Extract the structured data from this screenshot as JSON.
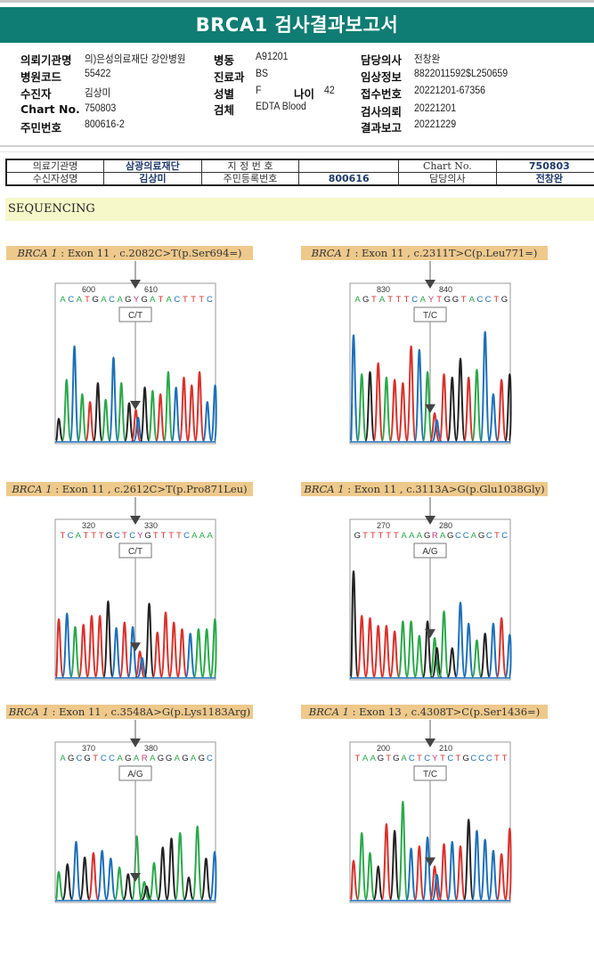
{
  "title": "BRCA1 검사결과보고서",
  "info": {
    "col1": [
      {
        "label": "의뢰기관명",
        "value": "의)은성의료재단 강안병원"
      },
      {
        "label": "병원코드",
        "value": "55422"
      },
      {
        "label": "수진자",
        "value": "김상미"
      },
      {
        "label": "Chart No.",
        "value": "750803"
      },
      {
        "label": "주민번호",
        "value": "800616-2"
      }
    ],
    "col2": [
      {
        "label": "병동",
        "value": "A91201"
      },
      {
        "label": "진료과",
        "value": "BS"
      },
      {
        "label": "성별",
        "value": "F"
      },
      {
        "label": "검체",
        "value": "EDTA Blood"
      }
    ],
    "age": {
      "label": "나이",
      "value": "42"
    },
    "col3": [
      {
        "label": "담당의사",
        "value": "전창완"
      },
      {
        "label": "임상정보",
        "value": "8822011592$L250659"
      },
      {
        "label": "접수번호",
        "value": "20221201-67356"
      },
      {
        "label": "검사의뢰",
        "value": "20221201"
      },
      {
        "label": "결과보고",
        "value": "20221229"
      }
    ]
  },
  "ref_table": {
    "rows": [
      [
        "의료기관명",
        "삼광의료재단",
        "지 정 번 호",
        "",
        "Chart No.",
        "750803"
      ],
      [
        "수신자성명",
        "김상미",
        "주민등록번호",
        "800616",
        "담당의사",
        "전창완"
      ]
    ]
  },
  "section_title": "SEQUENCING",
  "colors": {
    "A": "#2aa84a",
    "C": "#1d6fb8",
    "G": "#222222",
    "T": "#d9302b",
    "R": "#c0397a",
    "Y": "#c0397a",
    "header": "#0f7d73",
    "label_bg": "#eec98c",
    "section_bg": "#f6f8c9"
  },
  "variants": [
    {
      "gene": "BRCA 1",
      "desc": " : Exon 11 , c.2082C>T(p.Ser694=)",
      "call": "C/T",
      "positions": [
        "600",
        "610"
      ],
      "sequence": "ACATGACAGYGATACTTTC",
      "peaks": [
        [
          "G",
          0.2
        ],
        [
          "A",
          0.55
        ],
        [
          "C",
          0.85
        ],
        [
          "A",
          0.42
        ],
        [
          "T",
          0.35
        ],
        [
          "G",
          0.52
        ],
        [
          "A",
          0.37
        ],
        [
          "C",
          0.75
        ],
        [
          "A",
          0.52
        ],
        [
          "G",
          0.34
        ],
        [
          "Y",
          0.28
        ],
        [
          "G",
          0.48
        ],
        [
          "A",
          0.45
        ],
        [
          "T",
          0.42
        ],
        [
          "A",
          0.62
        ],
        [
          "C",
          0.48
        ],
        [
          "T",
          0.57
        ],
        [
          "T",
          0.5
        ],
        [
          "T",
          0.62
        ],
        [
          "C",
          0.35
        ],
        [
          "C",
          0.5
        ]
      ]
    },
    {
      "gene": "BRCA 1",
      "desc": " : Exon 11 , c.2311T>C(p.Leu771=)",
      "call": "T/C",
      "positions": [
        "830",
        "840"
      ],
      "sequence": "AGTATTTCAYTGGTACCTG",
      "peaks": [
        [
          "C",
          0.95
        ],
        [
          "A",
          0.6
        ],
        [
          "G",
          0.62
        ],
        [
          "T",
          0.7
        ],
        [
          "A",
          0.57
        ],
        [
          "T",
          0.55
        ],
        [
          "T",
          0.52
        ],
        [
          "T",
          0.85
        ],
        [
          "C",
          0.82
        ],
        [
          "A",
          0.62
        ],
        [
          "Y",
          0.25
        ],
        [
          "T",
          0.6
        ],
        [
          "G",
          0.57
        ],
        [
          "G",
          0.74
        ],
        [
          "T",
          0.57
        ],
        [
          "A",
          0.64
        ],
        [
          "C",
          0.98
        ],
        [
          "C",
          0.42
        ],
        [
          "T",
          0.55
        ],
        [
          "G",
          0.6
        ]
      ]
    },
    {
      "gene": "BRCA 1",
      "desc": " : Exon 11 , c.2612C>T(p.Pro871Leu)",
      "call": "C/T",
      "positions": [
        "320",
        "330"
      ],
      "sequence": "TCATTTGCTCYGTTTTCAAA",
      "peaks": [
        [
          "T",
          0.52
        ],
        [
          "C",
          0.57
        ],
        [
          "A",
          0.45
        ],
        [
          "T",
          0.47
        ],
        [
          "T",
          0.55
        ],
        [
          "T",
          0.55
        ],
        [
          "G",
          0.68
        ],
        [
          "C",
          0.44
        ],
        [
          "T",
          0.49
        ],
        [
          "C",
          0.45
        ],
        [
          "Y",
          0.23
        ],
        [
          "G",
          0.66
        ],
        [
          "T",
          0.4
        ],
        [
          "T",
          0.58
        ],
        [
          "T",
          0.49
        ],
        [
          "T",
          0.43
        ],
        [
          "C",
          0.39
        ],
        [
          "A",
          0.43
        ],
        [
          "A",
          0.43
        ],
        [
          "A",
          0.52
        ]
      ]
    },
    {
      "gene": "BRCA 1",
      "desc": " : Exon 11 , c.3113A>G(p.Glu1038Gly)",
      "call": "A/G",
      "positions": [
        "270",
        "280"
      ],
      "sequence": "GTTTTTAAAGRAGCCAGCTC",
      "peaks": [
        [
          "G",
          0.95
        ],
        [
          "T",
          0.55
        ],
        [
          "T",
          0.53
        ],
        [
          "T",
          0.46
        ],
        [
          "T",
          0.46
        ],
        [
          "T",
          0.41
        ],
        [
          "A",
          0.5
        ],
        [
          "A",
          0.5
        ],
        [
          "A",
          0.37
        ],
        [
          "G",
          0.5
        ],
        [
          "R",
          0.35
        ],
        [
          "A",
          0.59
        ],
        [
          "G",
          0.26
        ],
        [
          "C",
          0.67
        ],
        [
          "C",
          0.48
        ],
        [
          "A",
          0.33
        ],
        [
          "G",
          0.39
        ],
        [
          "C",
          0.48
        ],
        [
          "T",
          0.53
        ],
        [
          "C",
          0.38
        ]
      ]
    },
    {
      "gene": "BRCA 1",
      "desc": " : Exon 11 , c.3548A>G(p.Lys1183Arg)",
      "call": "A/G",
      "positions": [
        "370",
        "380"
      ],
      "sequence": "AGCGTCCAGARAGGAGAGC",
      "peaks": [
        [
          "A",
          0.25
        ],
        [
          "G",
          0.32
        ],
        [
          "C",
          0.52
        ],
        [
          "G",
          0.38
        ],
        [
          "T",
          0.42
        ],
        [
          "C",
          0.44
        ],
        [
          "C",
          0.37
        ],
        [
          "A",
          0.29
        ],
        [
          "G",
          0.23
        ],
        [
          "A",
          0.57
        ],
        [
          "R",
          0.16
        ],
        [
          "A",
          0.33
        ],
        [
          "G",
          0.47
        ],
        [
          "G",
          0.55
        ],
        [
          "A",
          0.6
        ],
        [
          "G",
          0.2
        ],
        [
          "A",
          0.66
        ],
        [
          "G",
          0.37
        ],
        [
          "C",
          0.43
        ]
      ]
    },
    {
      "gene": "BRCA 1",
      "desc": " : Exon 13 , c.4308T>C(p.Ser1436=)",
      "call": "T/C",
      "positions": [
        "200",
        "210"
      ],
      "sequence": "TAAGTGACTCYTCTGCCCTT",
      "peaks": [
        [
          "T",
          0.35
        ],
        [
          "A",
          0.6
        ],
        [
          "A",
          0.42
        ],
        [
          "G",
          0.3
        ],
        [
          "T",
          0.68
        ],
        [
          "G",
          0.62
        ],
        [
          "A",
          0.88
        ],
        [
          "C",
          0.46
        ],
        [
          "T",
          0.48
        ],
        [
          "C",
          0.56
        ],
        [
          "Y",
          0.3
        ],
        [
          "T",
          0.5
        ],
        [
          "C",
          0.52
        ],
        [
          "T",
          0.48
        ],
        [
          "G",
          0.72
        ],
        [
          "C",
          0.62
        ],
        [
          "C",
          0.54
        ],
        [
          "C",
          0.44
        ],
        [
          "T",
          0.41
        ],
        [
          "T",
          0.64
        ]
      ]
    }
  ]
}
